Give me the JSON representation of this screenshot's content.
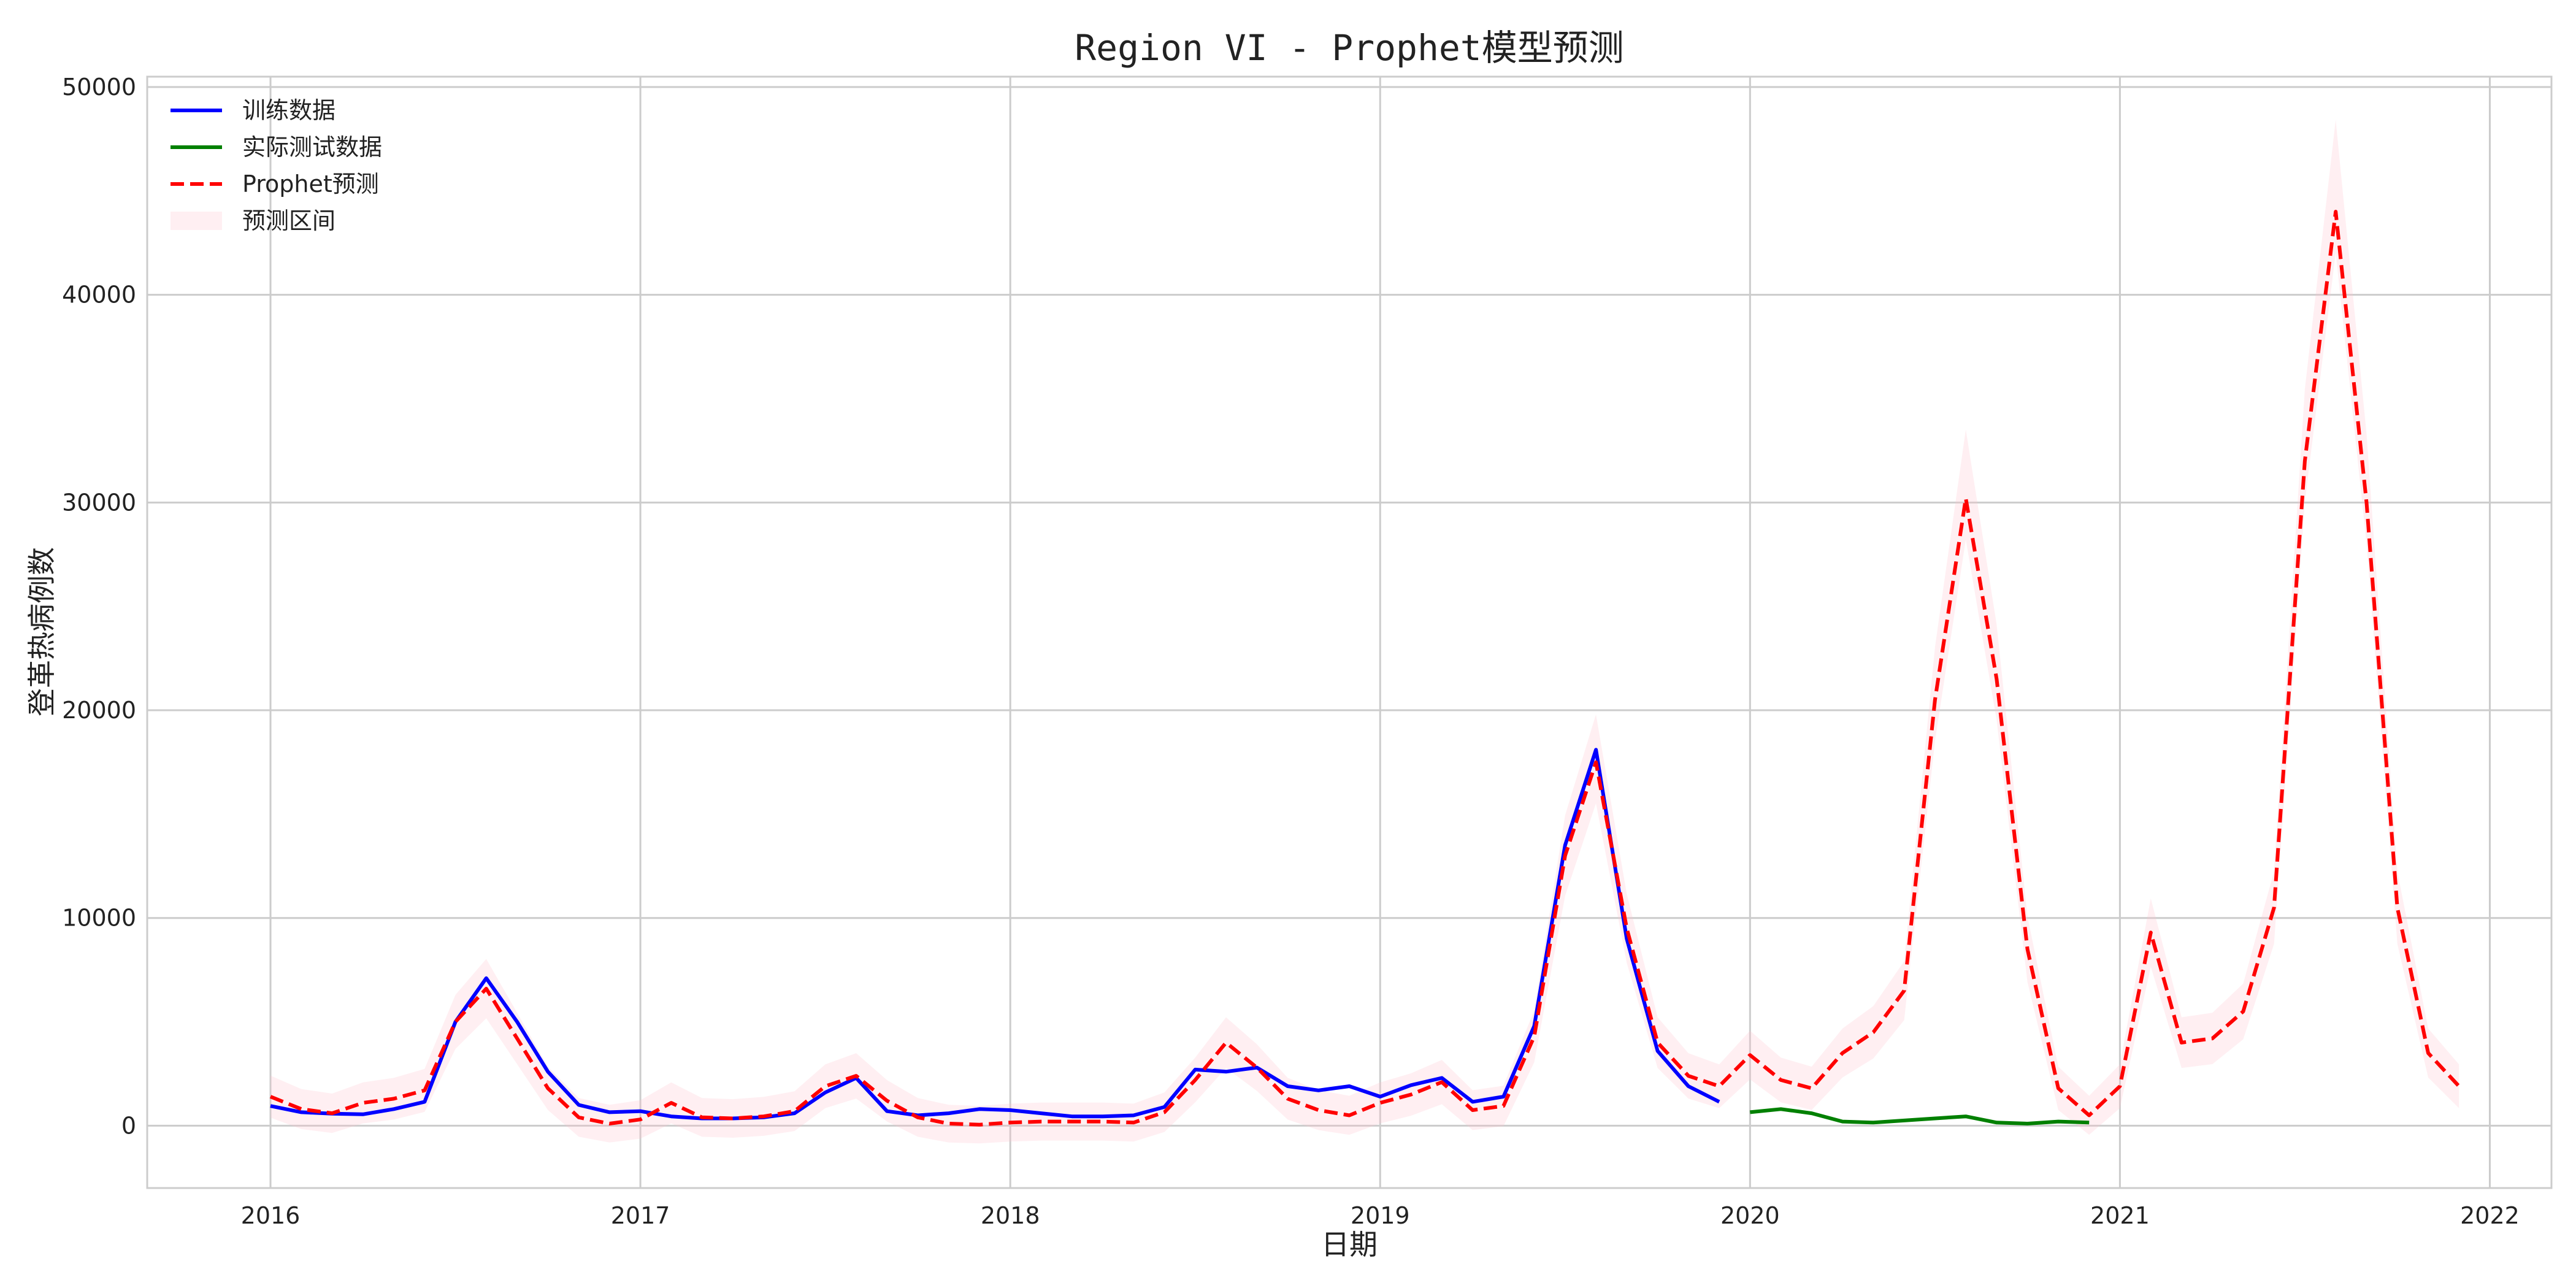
{
  "chart_data": {
    "type": "line",
    "title": "Region VI - Prophet模型预测",
    "xlabel": "日期",
    "ylabel": "登革热病例数",
    "x_ticks": [
      "2016",
      "2017",
      "2018",
      "2019",
      "2020",
      "2021",
      "2022"
    ],
    "y_ticks": [
      "0",
      "10000",
      "20000",
      "30000",
      "40000",
      "50000"
    ],
    "xlim": [
      "2015-09",
      "2022-03"
    ],
    "ylim": [
      -3000,
      50500
    ],
    "grid": true,
    "legend_position": "top-left",
    "series": [
      {
        "name": "训练数据",
        "color": "#0000ff",
        "style": "solid",
        "x": [
          "2016-01",
          "2016-02",
          "2016-03",
          "2016-04",
          "2016-05",
          "2016-06",
          "2016-07",
          "2016-08",
          "2016-09",
          "2016-10",
          "2016-11",
          "2016-12",
          "2017-01",
          "2017-02",
          "2017-03",
          "2017-04",
          "2017-05",
          "2017-06",
          "2017-07",
          "2017-08",
          "2017-09",
          "2017-10",
          "2017-11",
          "2017-12",
          "2018-01",
          "2018-02",
          "2018-03",
          "2018-04",
          "2018-05",
          "2018-06",
          "2018-07",
          "2018-08",
          "2018-09",
          "2018-10",
          "2018-11",
          "2018-12",
          "2019-01",
          "2019-02",
          "2019-03",
          "2019-04",
          "2019-05",
          "2019-06",
          "2019-07",
          "2019-08",
          "2019-09",
          "2019-10",
          "2019-11",
          "2019-12"
        ],
        "y": [
          950,
          650,
          580,
          550,
          800,
          1150,
          5000,
          7100,
          5000,
          2600,
          1000,
          650,
          700,
          450,
          350,
          350,
          400,
          600,
          1600,
          2300,
          700,
          500,
          600,
          800,
          750,
          600,
          450,
          450,
          500,
          900,
          2700,
          2600,
          2800,
          1900,
          1700,
          1900,
          1400,
          1950,
          2300,
          1150,
          1400,
          4800,
          13500,
          18100,
          9000,
          3600,
          1900,
          1150
        ]
      },
      {
        "name": "实际测试数据",
        "color": "#008000",
        "style": "solid",
        "x": [
          "2020-01",
          "2020-02",
          "2020-03",
          "2020-04",
          "2020-05",
          "2020-06",
          "2020-07",
          "2020-08",
          "2020-09",
          "2020-10",
          "2020-11",
          "2020-12"
        ],
        "y": [
          650,
          800,
          600,
          200,
          150,
          250,
          350,
          450,
          150,
          100,
          200,
          150
        ]
      },
      {
        "name": "Prophet预测",
        "color": "#ff0000",
        "style": "dashed",
        "x": [
          "2016-01",
          "2016-02",
          "2016-03",
          "2016-04",
          "2016-05",
          "2016-06",
          "2016-07",
          "2016-08",
          "2016-09",
          "2016-10",
          "2016-11",
          "2016-12",
          "2017-01",
          "2017-02",
          "2017-03",
          "2017-04",
          "2017-05",
          "2017-06",
          "2017-07",
          "2017-08",
          "2017-09",
          "2017-10",
          "2017-11",
          "2017-12",
          "2018-01",
          "2018-02",
          "2018-03",
          "2018-04",
          "2018-05",
          "2018-06",
          "2018-07",
          "2018-08",
          "2018-09",
          "2018-10",
          "2018-11",
          "2018-12",
          "2019-01",
          "2019-02",
          "2019-03",
          "2019-04",
          "2019-05",
          "2019-06",
          "2019-07",
          "2019-08",
          "2019-09",
          "2019-10",
          "2019-11",
          "2019-12",
          "2020-01",
          "2020-02",
          "2020-03",
          "2020-04",
          "2020-05",
          "2020-06",
          "2020-07",
          "2020-08",
          "2020-09",
          "2020-10",
          "2020-11",
          "2020-12",
          "2021-01",
          "2021-02",
          "2021-03",
          "2021-04",
          "2021-05",
          "2021-06",
          "2021-07",
          "2021-08",
          "2021-09",
          "2021-10",
          "2021-11",
          "2021-12"
        ],
        "y": [
          1400,
          800,
          600,
          1100,
          1300,
          1700,
          5000,
          6600,
          4200,
          1800,
          400,
          100,
          300,
          1100,
          400,
          350,
          450,
          700,
          1900,
          2400,
          1200,
          400,
          100,
          50,
          150,
          200,
          200,
          200,
          150,
          650,
          2200,
          4000,
          2800,
          1300,
          750,
          500,
          1100,
          1500,
          2100,
          750,
          950,
          4300,
          13000,
          17500,
          9500,
          4000,
          2400,
          1900,
          3400,
          2200,
          1800,
          3500,
          4500,
          6500,
          20500,
          30200,
          21500,
          8500,
          1800,
          500,
          1900,
          9300,
          4000,
          4200,
          5500,
          10500,
          32000,
          44000,
          30000,
          10500,
          3500,
          1900
        ]
      }
    ],
    "interval": {
      "name": "预测区间",
      "color": "#ffc0cb",
      "opacity": 0.25,
      "half_width": 900
    }
  }
}
